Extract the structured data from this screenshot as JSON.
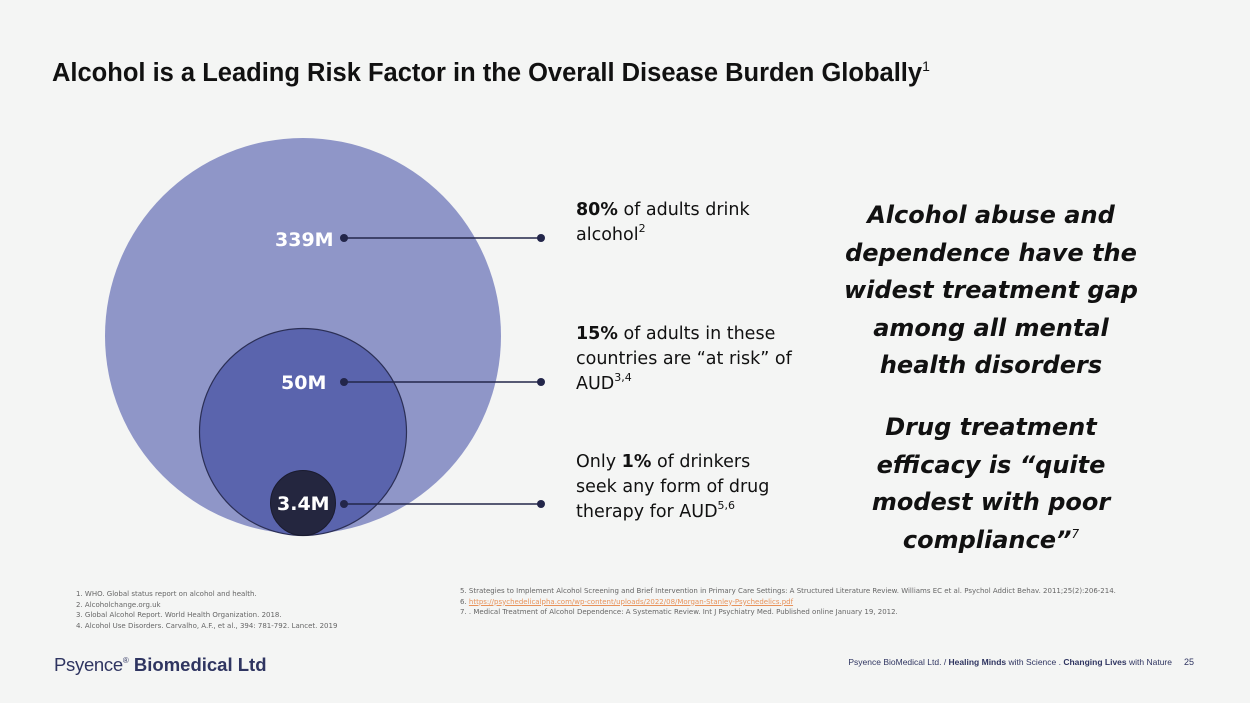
{
  "slide": {
    "title": "Alcohol is a Leading Risk Factor in the Overall Disease Burden Globally",
    "title_sup": "1",
    "page_number": "25"
  },
  "colors": {
    "outer_circle": "#8f96c8",
    "middle_circle": "#5a64ad",
    "inner_circle": "#24263f",
    "connector": "#23264a",
    "brand": "#2f3561"
  },
  "circles": [
    {
      "label": "339M",
      "stat": {
        "pre": "",
        "bold": "80%",
        "post": " of adults drink alcohol",
        "sup": "2"
      }
    },
    {
      "label": "50M",
      "stat": {
        "pre": "",
        "bold": "15%",
        "post": " of adults in these countries are “at risk” of AUD",
        "sup": "3,4"
      }
    },
    {
      "label": "3.4M",
      "stat": {
        "pre": "Only ",
        "bold": "1%",
        "post": " of drinkers seek any form of drug therapy for AUD",
        "sup": "5,6"
      }
    }
  ],
  "callouts": {
    "first": "Alcohol abuse and dependence have the widest treatment gap among all mental health disorders",
    "second": "Drug treatment efficacy is “quite modest with poor compliance”",
    "second_sup": "7"
  },
  "references_left": [
    "1. WHO. Global status report on alcohol and health.",
    "2. Alcoholchange.org.uk",
    "3. Global Alcohol Report. World Health Organization. 2018.",
    "4. Alcohol Use Disorders. Carvalho, A.F., et al., 394: 781-792. Lancet. 2019"
  ],
  "references_right": {
    "r5": "5. Strategies to Implement Alcohol Screening and Brief Intervention in Primary Care Settings: A Structured Literature Review. Williams EC et al. Psychol Addict Behav. 2011;25(2):206-214.",
    "r6_prefix": "6. ",
    "r6_link": "https://psychedelicalpha.com/wp-content/uploads/2022/08/Morgan-Stanley-Psychedelics.pdf",
    "r7": "7. . Medical Treatment of Alcohol Dependence: A Systematic Review. Int J Psychiatry Med. Published online January 19, 2012."
  },
  "brand": {
    "psy": "Psyence",
    "tm": "®",
    "rest": " Biomedical Ltd"
  },
  "footer": {
    "company": "Psyence BioMedical Ltd. / ",
    "bold1": "Healing Minds",
    "mid": " with Science . ",
    "bold2": "Changing Lives",
    "end": " with Nature"
  }
}
